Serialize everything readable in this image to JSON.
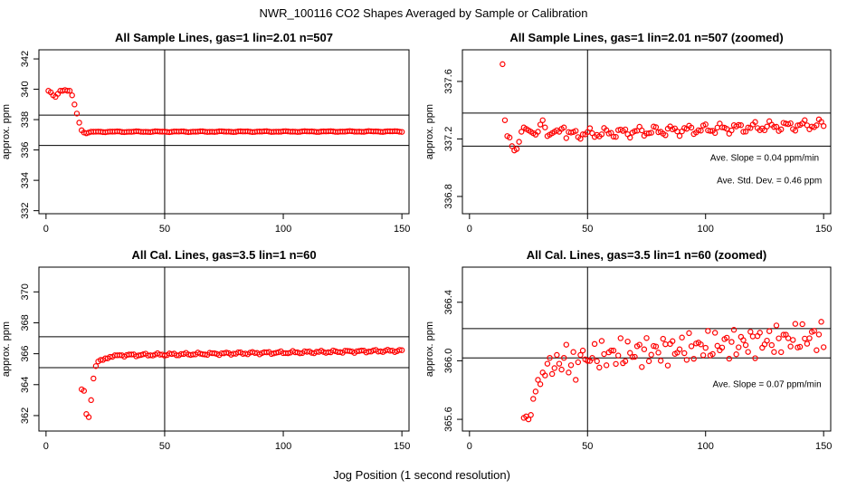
{
  "page": {
    "title": "NWR_100116  CO2 Shapes Averaged by Sample or Calibration",
    "xlabel": "Jog Position (1 second resolution)"
  },
  "colors": {
    "points": "#ff0000",
    "axes": "#000000",
    "background": "#ffffff"
  },
  "chart_data": [
    {
      "type": "scatter",
      "title": "All Sample Lines, gas=1 lin=2.01 n=507",
      "ylabel": "approx. ppm",
      "xlim": [
        -3,
        153
      ],
      "ylim": [
        331.8,
        342.6
      ],
      "xticks": [
        0,
        50,
        100,
        150
      ],
      "yticks": [
        332,
        334,
        336,
        338,
        340,
        342
      ],
      "ref_lines": {
        "v": [
          50
        ],
        "h": [
          336.3,
          338.3
        ]
      },
      "annotations": [],
      "series": [
        {
          "marker": "open-circle",
          "x": [
            1,
            2,
            3,
            4,
            5,
            6,
            7,
            8,
            9,
            10,
            11,
            12,
            13,
            14,
            15,
            16,
            17,
            18,
            19,
            20
          ],
          "y": [
            339.9,
            339.8,
            339.6,
            339.5,
            339.7,
            339.9,
            339.9,
            339.95,
            339.9,
            339.9,
            339.6,
            339.0,
            338.4,
            337.8,
            337.3,
            337.15,
            337.1,
            337.15,
            337.2,
            337.2
          ],
          "tail": {
            "x_from": 21,
            "x_to": 150,
            "y_start": 337.2,
            "y_end": 337.22,
            "amp": 0.02,
            "freq": 0.7
          }
        }
      ]
    },
    {
      "type": "scatter",
      "title": "All Sample Lines, gas=1 lin=2.01 n=507 (zoomed)",
      "ylabel": "approx. ppm",
      "xlim": [
        -3,
        153
      ],
      "ylim": [
        336.68,
        337.82
      ],
      "xticks": [
        0,
        50,
        100,
        150
      ],
      "yticks": [
        336.8,
        337.2,
        337.6
      ],
      "ref_lines": {
        "v": [
          50
        ],
        "h": [
          337.15,
          337.38
        ]
      },
      "annotations": [
        {
          "label": "Ave. Slope =",
          "value": "0.04",
          "unit": "ppm/min",
          "x": 125,
          "y": 337.05
        },
        {
          "label": "Ave. Std. Dev. =",
          "value": "0.46",
          "unit": "ppm",
          "x": 127,
          "y": 336.89
        }
      ],
      "series": [
        {
          "marker": "open-circle",
          "x": [
            14,
            15,
            16,
            17,
            18,
            19,
            20,
            21,
            22,
            23,
            24,
            25,
            26,
            27,
            28,
            29,
            30,
            31,
            32,
            33,
            34,
            35,
            36,
            37,
            38,
            39,
            40
          ],
          "y": [
            337.72,
            337.33,
            337.22,
            337.21,
            337.15,
            337.12,
            337.13,
            337.18,
            337.25,
            337.28,
            337.27,
            337.26,
            337.25,
            337.24,
            337.23,
            337.25,
            337.3,
            337.33,
            337.28,
            337.22,
            337.23,
            337.24,
            337.25,
            337.26,
            337.25,
            337.27,
            337.28
          ],
          "tail": {
            "x_from": 41,
            "x_to": 150,
            "y_start": 337.23,
            "y_end": 337.3,
            "amp": 0.025,
            "freq": 0.9
          }
        }
      ]
    },
    {
      "type": "scatter",
      "title": "All Cal. Lines, gas=3.5 lin=1 n=60",
      "ylabel": "approx. ppm",
      "xlim": [
        -3,
        153
      ],
      "ylim": [
        361.0,
        371.6
      ],
      "xticks": [
        0,
        50,
        100,
        150
      ],
      "yticks": [
        362,
        364,
        366,
        368,
        370
      ],
      "ref_lines": {
        "v": [
          50
        ],
        "h": [
          365.1,
          367.1
        ]
      },
      "annotations": [],
      "series": [
        {
          "marker": "open-circle",
          "x": [
            15,
            16,
            17,
            18,
            19,
            20,
            21,
            22,
            23,
            24,
            25,
            26,
            27,
            28,
            29,
            30
          ],
          "y": [
            363.7,
            363.6,
            362.1,
            361.9,
            363.0,
            364.4,
            365.2,
            365.5,
            365.6,
            365.6,
            365.7,
            365.7,
            365.8,
            365.8,
            365.9,
            365.9
          ],
          "tail": {
            "x_from": 31,
            "x_to": 150,
            "y_start": 365.9,
            "y_end": 366.2,
            "amp": 0.06,
            "freq": 1.1
          }
        }
      ]
    },
    {
      "type": "scatter",
      "title": "All Cal. Lines, gas=3.5 lin=1 n=60 (zoomed)",
      "ylabel": "approx. ppm",
      "xlim": [
        -3,
        153
      ],
      "ylim": [
        365.52,
        366.64
      ],
      "xticks": [
        0,
        50,
        100,
        150
      ],
      "yticks": [
        365.6,
        366.0,
        366.4
      ],
      "ref_lines": {
        "v": [
          50
        ],
        "h": [
          366.02,
          366.22
        ]
      },
      "annotations": [
        {
          "label": "Ave. Slope =",
          "value": "0.07",
          "unit": "ppm/min",
          "x": 126,
          "y": 365.82
        }
      ],
      "series": [
        {
          "marker": "open-circle",
          "x": [
            23,
            24,
            25,
            26,
            27,
            28,
            29,
            30,
            31,
            32,
            33,
            34,
            35,
            36,
            37,
            38,
            39,
            40,
            41,
            42,
            43,
            44,
            45,
            46,
            47,
            48,
            49,
            50
          ],
          "y": [
            365.61,
            365.62,
            365.6,
            365.63,
            365.74,
            365.79,
            365.87,
            365.84,
            365.92,
            365.9,
            365.98,
            366.02,
            365.91,
            365.95,
            366.04,
            365.98,
            365.94,
            366.02,
            366.11,
            365.92,
            365.97,
            366.06,
            365.87,
            365.99,
            366.04,
            366.07,
            366.01,
            366.0
          ],
          "tail": {
            "x_from": 51,
            "x_to": 150,
            "y_start": 366.03,
            "y_end": 366.17,
            "amp": 0.07,
            "freq": 1.7
          }
        }
      ]
    }
  ]
}
